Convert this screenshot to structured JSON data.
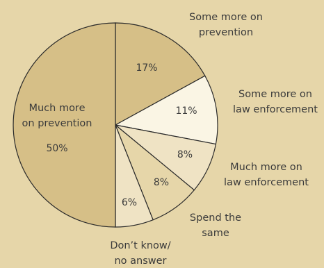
{
  "chart_data": {
    "type": "pie",
    "slices": [
      {
        "label": [
          "Some more on",
          "prevention"
        ],
        "value": 17,
        "value_label": "17%",
        "color": "#d6bf87"
      },
      {
        "label": [
          "Some more on",
          "law enforcement"
        ],
        "value": 11,
        "value_label": "11%",
        "color": "#faf5e4"
      },
      {
        "label": [
          "Much more on",
          "law enforcement"
        ],
        "value": 8,
        "value_label": "8%",
        "color": "#efe3c4"
      },
      {
        "label": [
          "Spend the",
          "same"
        ],
        "value": 8,
        "value_label": "8%",
        "color": "#e6d6a9"
      },
      {
        "label": [
          "Don’t know/",
          "no answer"
        ],
        "value": 6,
        "value_label": "6%",
        "color": "#efe3c4"
      },
      {
        "label": [
          "Much more",
          "on prevention"
        ],
        "value": 50,
        "value_label": "50%",
        "color": "#d6bf87"
      }
    ]
  }
}
